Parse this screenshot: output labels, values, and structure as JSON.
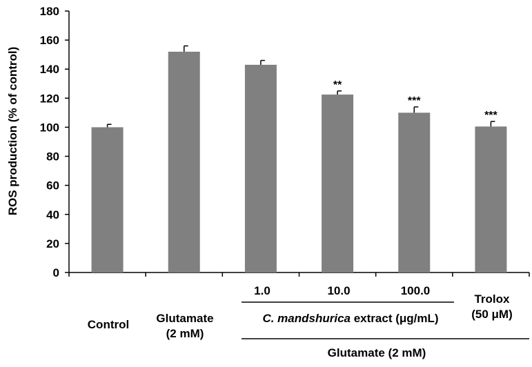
{
  "chart_data": {
    "type": "bar",
    "categories": [
      "Control",
      "Glutamate (2 mM)",
      "1.0",
      "10.0",
      "100.0",
      "Trolox (50 μM)"
    ],
    "values": [
      100,
      152,
      143,
      122.5,
      110,
      100.5
    ],
    "errors": [
      2,
      4,
      3,
      2.5,
      4,
      3.5
    ],
    "significance": [
      "",
      "",
      "",
      "**",
      "***",
      "***"
    ],
    "ylabel": "ROS production (% of control)",
    "ylim": [
      0,
      180
    ],
    "yticks": [
      0,
      20,
      40,
      60,
      80,
      100,
      120,
      140,
      160,
      180
    ],
    "grid": false,
    "bar_color": "#808080",
    "labels": {
      "control": "Control",
      "glutamate_line1": "Glutamate",
      "glutamate_line2": "(2 mM)",
      "dose_1": "1.0",
      "dose_10": "10.0",
      "dose_100": "100.0",
      "trolox_line1": "Trolox",
      "trolox_line2": "(50 μM)",
      "extract_italic": "C. mandshurica",
      "extract_rest": " extract (μg/mL)",
      "glutamate_group": "Glutamate (2 mM)"
    }
  }
}
